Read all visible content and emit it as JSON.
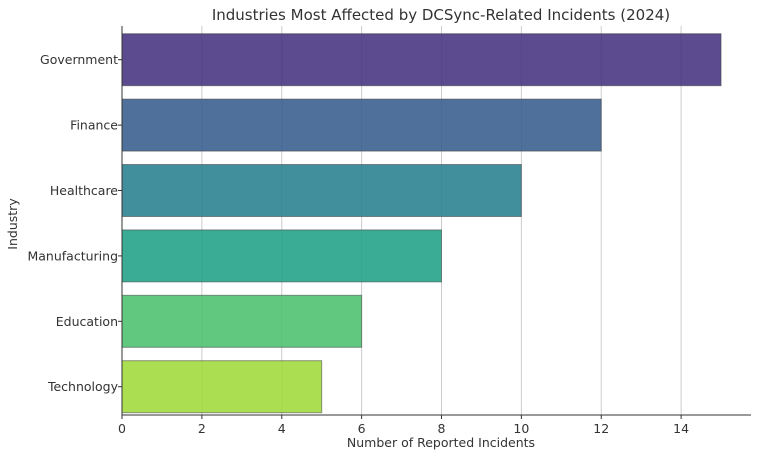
{
  "chart_data": {
    "type": "bar",
    "orientation": "horizontal",
    "title": "Industries Most Affected by DCSync-Related Incidents (2024)",
    "xlabel": "Number of Reported Incidents",
    "ylabel": "Industry",
    "categories": [
      "Government",
      "Finance",
      "Healthcare",
      "Manufacturing",
      "Education",
      "Technology"
    ],
    "values": [
      15,
      12,
      10,
      8,
      6,
      5
    ],
    "colors": [
      "#46327e",
      "#365c8d",
      "#277f8e",
      "#1fa187",
      "#4ac16d",
      "#a0da39"
    ],
    "xlim": [
      0,
      15.75
    ],
    "xticks": [
      0,
      2,
      4,
      6,
      8,
      10,
      12,
      14
    ],
    "grid": "vertical"
  }
}
